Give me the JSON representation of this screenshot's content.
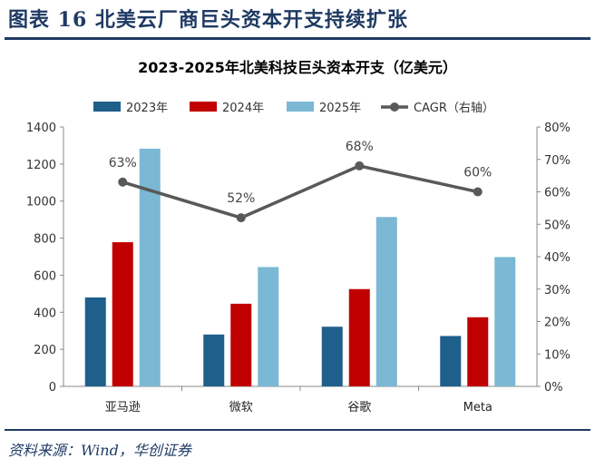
{
  "figure": {
    "title": "图表 16   北美云厂商巨头资本开支持续扩张",
    "source": "资料来源：Wind，华创证券"
  },
  "colors": {
    "2023": "#1f5f8b",
    "2024": "#c00000",
    "2025": "#7ab8d4",
    "cagr": "#595959",
    "rule": "#1f3a63"
  },
  "chart_data": {
    "type": "bar",
    "title": "2023-2025年北美科技巨头资本开支（亿美元）",
    "categories": [
      "亚马逊",
      "微软",
      "谷歌",
      "Meta"
    ],
    "series": [
      {
        "name": "2023年",
        "values": [
          480,
          280,
          322,
          272
        ]
      },
      {
        "name": "2024年",
        "values": [
          778,
          446,
          525,
          373
        ]
      },
      {
        "name": "2025年",
        "values": [
          1283,
          644,
          914,
          698
        ]
      }
    ],
    "line_series": {
      "name": "CAGR（右轴）",
      "values": [
        0.63,
        0.52,
        0.68,
        0.6
      ],
      "labels": [
        "63%",
        "52%",
        "68%",
        "60%"
      ]
    },
    "ylim": [
      0,
      1400
    ],
    "yticks": [
      "0",
      "200",
      "400",
      "600",
      "800",
      "1000",
      "1200",
      "1400"
    ],
    "y2lim": [
      0,
      0.8
    ],
    "y2ticks": [
      "0%",
      "10%",
      "20%",
      "30%",
      "40%",
      "50%",
      "60%",
      "70%",
      "80%"
    ],
    "legend_position": "top",
    "grid": false
  }
}
